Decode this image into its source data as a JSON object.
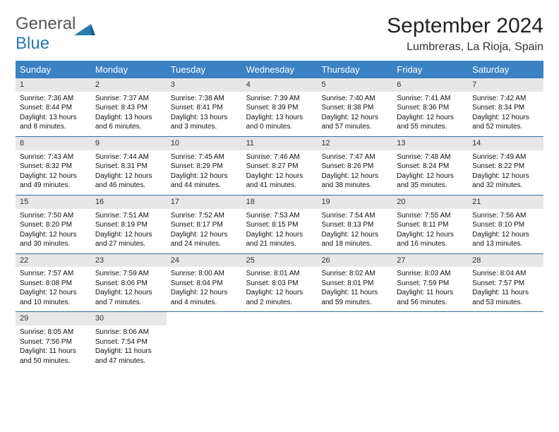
{
  "brand": {
    "part1": "General",
    "part2": "Blue"
  },
  "title": "September 2024",
  "location": "Lumbreras, La Rioja, Spain",
  "colors": {
    "header_bg": "#3b82c4",
    "header_fg": "#ffffff",
    "daynum_bg": "#e7e7e7",
    "row_border": "#3b6a9a",
    "logo_blue": "#2a7ab0",
    "logo_grey": "#555555"
  },
  "day_labels": [
    "Sunday",
    "Monday",
    "Tuesday",
    "Wednesday",
    "Thursday",
    "Friday",
    "Saturday"
  ],
  "weeks": [
    [
      {
        "n": "1",
        "sr": "Sunrise: 7:36 AM",
        "ss": "Sunset: 8:44 PM",
        "dl": "Daylight: 13 hours and 8 minutes."
      },
      {
        "n": "2",
        "sr": "Sunrise: 7:37 AM",
        "ss": "Sunset: 8:43 PM",
        "dl": "Daylight: 13 hours and 6 minutes."
      },
      {
        "n": "3",
        "sr": "Sunrise: 7:38 AM",
        "ss": "Sunset: 8:41 PM",
        "dl": "Daylight: 13 hours and 3 minutes."
      },
      {
        "n": "4",
        "sr": "Sunrise: 7:39 AM",
        "ss": "Sunset: 8:39 PM",
        "dl": "Daylight: 13 hours and 0 minutes."
      },
      {
        "n": "5",
        "sr": "Sunrise: 7:40 AM",
        "ss": "Sunset: 8:38 PM",
        "dl": "Daylight: 12 hours and 57 minutes."
      },
      {
        "n": "6",
        "sr": "Sunrise: 7:41 AM",
        "ss": "Sunset: 8:36 PM",
        "dl": "Daylight: 12 hours and 55 minutes."
      },
      {
        "n": "7",
        "sr": "Sunrise: 7:42 AM",
        "ss": "Sunset: 8:34 PM",
        "dl": "Daylight: 12 hours and 52 minutes."
      }
    ],
    [
      {
        "n": "8",
        "sr": "Sunrise: 7:43 AM",
        "ss": "Sunset: 8:32 PM",
        "dl": "Daylight: 12 hours and 49 minutes."
      },
      {
        "n": "9",
        "sr": "Sunrise: 7:44 AM",
        "ss": "Sunset: 8:31 PM",
        "dl": "Daylight: 12 hours and 46 minutes."
      },
      {
        "n": "10",
        "sr": "Sunrise: 7:45 AM",
        "ss": "Sunset: 8:29 PM",
        "dl": "Daylight: 12 hours and 44 minutes."
      },
      {
        "n": "11",
        "sr": "Sunrise: 7:46 AM",
        "ss": "Sunset: 8:27 PM",
        "dl": "Daylight: 12 hours and 41 minutes."
      },
      {
        "n": "12",
        "sr": "Sunrise: 7:47 AM",
        "ss": "Sunset: 8:26 PM",
        "dl": "Daylight: 12 hours and 38 minutes."
      },
      {
        "n": "13",
        "sr": "Sunrise: 7:48 AM",
        "ss": "Sunset: 8:24 PM",
        "dl": "Daylight: 12 hours and 35 minutes."
      },
      {
        "n": "14",
        "sr": "Sunrise: 7:49 AM",
        "ss": "Sunset: 8:22 PM",
        "dl": "Daylight: 12 hours and 32 minutes."
      }
    ],
    [
      {
        "n": "15",
        "sr": "Sunrise: 7:50 AM",
        "ss": "Sunset: 8:20 PM",
        "dl": "Daylight: 12 hours and 30 minutes."
      },
      {
        "n": "16",
        "sr": "Sunrise: 7:51 AM",
        "ss": "Sunset: 8:19 PM",
        "dl": "Daylight: 12 hours and 27 minutes."
      },
      {
        "n": "17",
        "sr": "Sunrise: 7:52 AM",
        "ss": "Sunset: 8:17 PM",
        "dl": "Daylight: 12 hours and 24 minutes."
      },
      {
        "n": "18",
        "sr": "Sunrise: 7:53 AM",
        "ss": "Sunset: 8:15 PM",
        "dl": "Daylight: 12 hours and 21 minutes."
      },
      {
        "n": "19",
        "sr": "Sunrise: 7:54 AM",
        "ss": "Sunset: 8:13 PM",
        "dl": "Daylight: 12 hours and 18 minutes."
      },
      {
        "n": "20",
        "sr": "Sunrise: 7:55 AM",
        "ss": "Sunset: 8:11 PM",
        "dl": "Daylight: 12 hours and 16 minutes."
      },
      {
        "n": "21",
        "sr": "Sunrise: 7:56 AM",
        "ss": "Sunset: 8:10 PM",
        "dl": "Daylight: 12 hours and 13 minutes."
      }
    ],
    [
      {
        "n": "22",
        "sr": "Sunrise: 7:57 AM",
        "ss": "Sunset: 8:08 PM",
        "dl": "Daylight: 12 hours and 10 minutes."
      },
      {
        "n": "23",
        "sr": "Sunrise: 7:59 AM",
        "ss": "Sunset: 8:06 PM",
        "dl": "Daylight: 12 hours and 7 minutes."
      },
      {
        "n": "24",
        "sr": "Sunrise: 8:00 AM",
        "ss": "Sunset: 8:04 PM",
        "dl": "Daylight: 12 hours and 4 minutes."
      },
      {
        "n": "25",
        "sr": "Sunrise: 8:01 AM",
        "ss": "Sunset: 8:03 PM",
        "dl": "Daylight: 12 hours and 2 minutes."
      },
      {
        "n": "26",
        "sr": "Sunrise: 8:02 AM",
        "ss": "Sunset: 8:01 PM",
        "dl": "Daylight: 11 hours and 59 minutes."
      },
      {
        "n": "27",
        "sr": "Sunrise: 8:03 AM",
        "ss": "Sunset: 7:59 PM",
        "dl": "Daylight: 11 hours and 56 minutes."
      },
      {
        "n": "28",
        "sr": "Sunrise: 8:04 AM",
        "ss": "Sunset: 7:57 PM",
        "dl": "Daylight: 11 hours and 53 minutes."
      }
    ],
    [
      {
        "n": "29",
        "sr": "Sunrise: 8:05 AM",
        "ss": "Sunset: 7:56 PM",
        "dl": "Daylight: 11 hours and 50 minutes."
      },
      {
        "n": "30",
        "sr": "Sunrise: 8:06 AM",
        "ss": "Sunset: 7:54 PM",
        "dl": "Daylight: 11 hours and 47 minutes."
      },
      {
        "empty": true
      },
      {
        "empty": true
      },
      {
        "empty": true
      },
      {
        "empty": true
      },
      {
        "empty": true
      }
    ]
  ]
}
